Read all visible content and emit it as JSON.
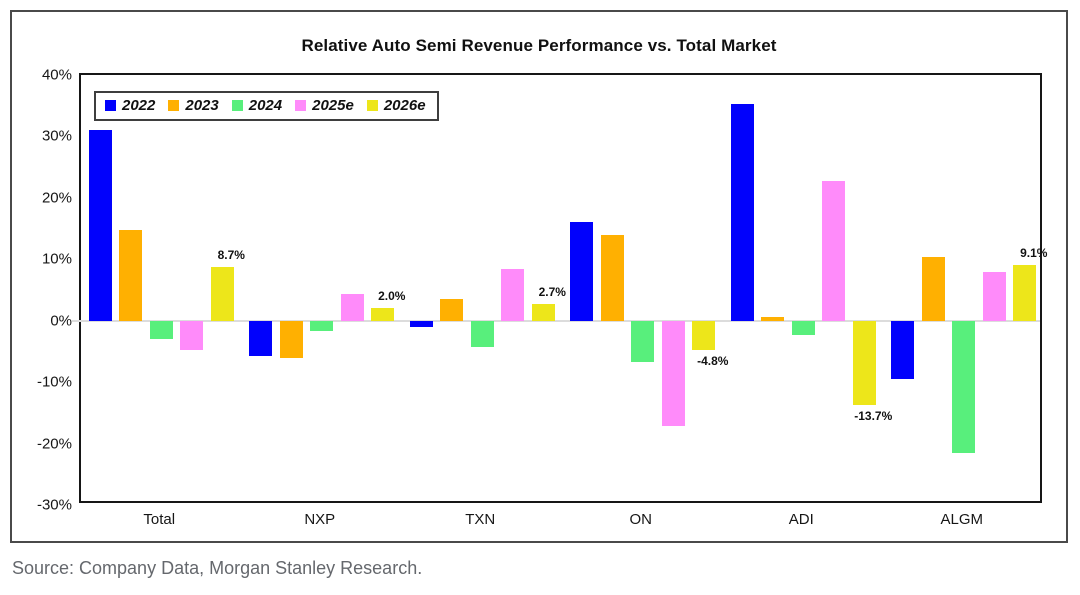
{
  "source": "Source: Company Data, Morgan Stanley Research.",
  "chart_data": {
    "type": "bar",
    "title": "Relative Auto Semi Revenue Performance vs. Total Market",
    "categories": [
      "Total",
      "NXP",
      "TXN",
      "ON",
      "ADI",
      "ALGM"
    ],
    "series": [
      {
        "name": "2022",
        "color": "#0101FC",
        "values": [
          31.0,
          -5.7,
          -1.0,
          16.0,
          35.3,
          -9.5
        ]
      },
      {
        "name": "2023",
        "color": "#FFB001",
        "values": [
          14.8,
          -6.1,
          3.5,
          13.9,
          0.6,
          10.3
        ]
      },
      {
        "name": "2024",
        "color": "#58EF7C",
        "values": [
          -3.0,
          -1.6,
          -4.3,
          -6.7,
          -2.3,
          -21.5
        ]
      },
      {
        "name": "2025e",
        "color": "#FF8BFA",
        "values": [
          -4.7,
          4.3,
          8.4,
          -17.1,
          22.7,
          7.9
        ]
      },
      {
        "name": "2026e",
        "color": "#EDE61A",
        "values": [
          8.7,
          2.0,
          2.7,
          -4.8,
          -13.7,
          9.1
        ]
      }
    ],
    "data_labels": {
      "series": "2026e",
      "texts": [
        "8.7%",
        "2.0%",
        "2.7%",
        "-4.8%",
        "-13.7%",
        "9.1%"
      ]
    },
    "y_axis": {
      "min": -30,
      "max": 40,
      "step": 10,
      "tick_labels": [
        "40%",
        "30%",
        "20%",
        "10%",
        "0%",
        "-10%",
        "-20%",
        "-30%"
      ]
    },
    "legend_position": "top-left",
    "grid": "zero-line-only",
    "ylabel": "",
    "xlabel": ""
  }
}
